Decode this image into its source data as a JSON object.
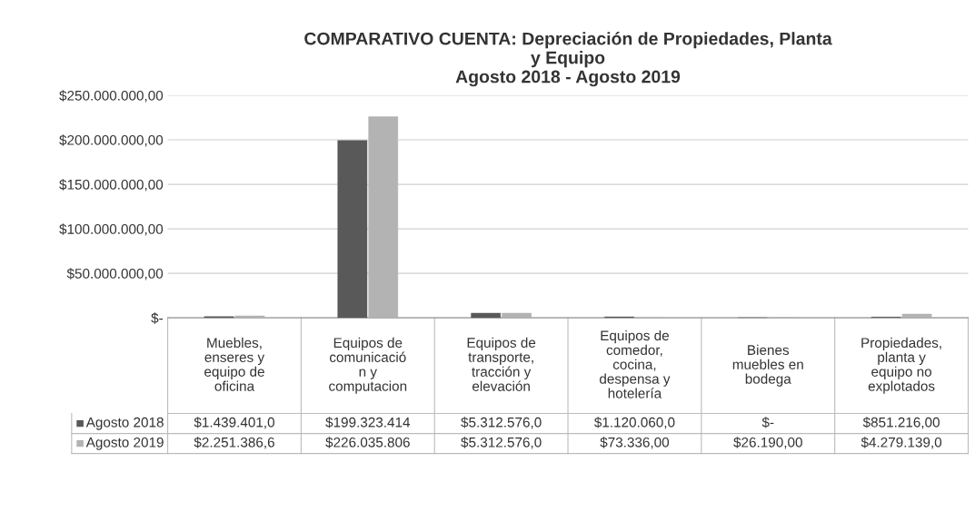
{
  "chart_data": {
    "type": "bar",
    "title": "COMPARATIVO CUENTA: Depreciación de Propiedades, Planta\ny Equipo\nAgosto 2018 - Agosto 2019",
    "categories": [
      "Muebles,\nenseres y\nequipo de\noficina",
      "Equipos de\ncomunicació\nn y\ncomputacion",
      "Equipos de\ntransporte,\ntracción y\nelevación",
      "Equipos de\ncomedor,\ncocina,\ndespensa y\nhotelería",
      "Bienes\nmuebles en\nbodega",
      "Propiedades,\nplanta y\nequipo no\nexplotados"
    ],
    "series": [
      {
        "name": "Agosto 2018",
        "color": "#595959",
        "values": [
          1439401.0,
          199323414,
          5312576.0,
          1120060.0,
          0,
          851216.0
        ],
        "value_labels": [
          "$1.439.401,0",
          "$199.323.414",
          "$5.312.576,0",
          "$1.120.060,0",
          "$-",
          "$851.216,00"
        ]
      },
      {
        "name": "Agosto 2019",
        "color": "#b3b3b3",
        "values": [
          2251386.6,
          226035806,
          5312576.0,
          73336.0,
          26190.0,
          4279139.0
        ],
        "value_labels": [
          "$2.251.386,6",
          "$226.035.806",
          "$5.312.576,0",
          "$73.336,00",
          "$26.190,00",
          "$4.279.139,0"
        ]
      }
    ],
    "ylim": [
      0,
      250000000
    ],
    "yticks": [
      {
        "value": 0,
        "label": "$-"
      },
      {
        "value": 50000000,
        "label": "$50.000.000,00"
      },
      {
        "value": 100000000,
        "label": "$100.000.000,00"
      },
      {
        "value": 150000000,
        "label": "$150.000.000,00"
      },
      {
        "value": 200000000,
        "label": "$200.000.000,00"
      },
      {
        "value": 250000000,
        "label": "$250.000.000,00"
      }
    ],
    "grid": "y",
    "legend": "bottom left"
  }
}
